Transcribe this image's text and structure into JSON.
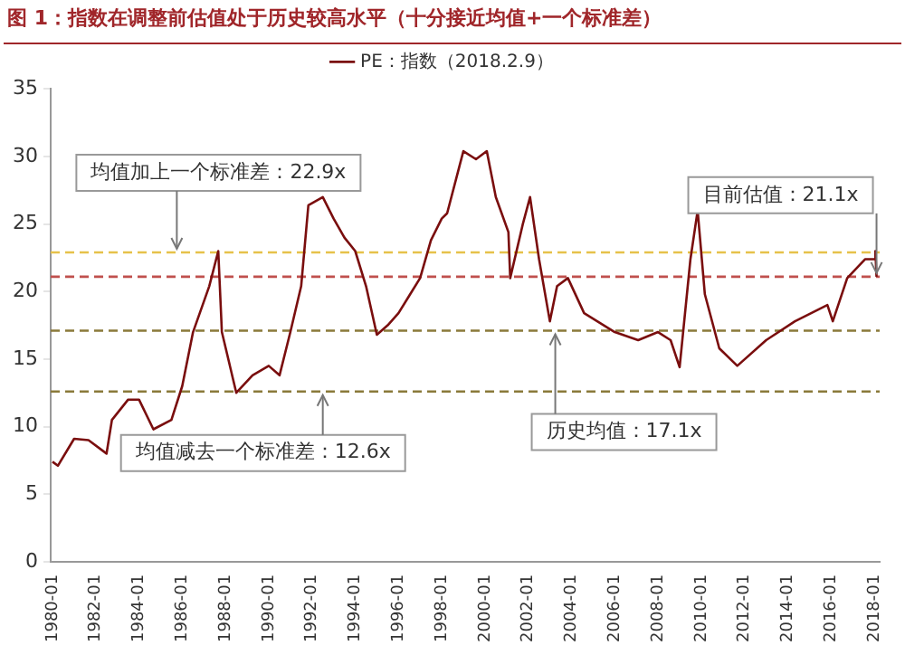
{
  "chart_data": {
    "type": "line",
    "title": "图 1：指数在调整前估值处于历史较高水平（十分接近均值+一个标准差）",
    "xlim": [
      "1979-12",
      "2018-04"
    ],
    "xticks": [
      "1980-01",
      "1982-01",
      "1984-01",
      "1986-01",
      "1988-01",
      "1990-01",
      "1992-01",
      "1994-01",
      "1996-01",
      "1998-01",
      "2000-01",
      "2002-01",
      "2004-01",
      "2006-01",
      "2008-01",
      "2010-01",
      "2012-01",
      "2014-01",
      "2016-01",
      "2018-01"
    ],
    "ylim": [
      0,
      35
    ],
    "yticks": [
      0,
      5,
      10,
      15,
      20,
      25,
      30,
      35
    ],
    "grid": false,
    "legend": "top right",
    "marker": "none",
    "line_style": "solid",
    "series": [
      {
        "name": "PE：指数（2018.2.9）",
        "color": "#7a0e0e",
        "x": [
          "1980-01",
          "1980-04",
          "1981-01",
          "1981-09",
          "1982-07",
          "1982-10",
          "1983-07",
          "1984-01",
          "1984-09",
          "1985-07",
          "1986-01",
          "1986-07",
          "1987-04",
          "1987-09",
          "1987-11",
          "1988-07",
          "1989-04",
          "1990-01",
          "1990-07",
          "1991-01",
          "1991-07",
          "1991-11",
          "1992-07",
          "1993-01",
          "1993-07",
          "1994-01",
          "1994-07",
          "1995-01",
          "1995-07",
          "1996-01",
          "1996-07",
          "1997-01",
          "1997-07",
          "1998-01",
          "1998-04",
          "1999-01",
          "1999-08",
          "2000-02",
          "2000-07",
          "2001-02",
          "2001-03",
          "2001-10",
          "2002-02",
          "2002-07",
          "2003-01",
          "2003-05",
          "2003-11",
          "2004-08",
          "2006-01",
          "2007-02",
          "2008-01",
          "2008-08",
          "2009-01",
          "2009-07",
          "2009-11",
          "2010-03",
          "2010-11",
          "2011-09",
          "2013-01",
          "2014-05",
          "2015-11",
          "2016-02",
          "2016-10",
          "2017-08",
          "2018-01",
          "2018-01-20",
          "2018-02-09"
        ],
        "values": [
          7.4,
          7.1,
          9.1,
          9.0,
          8.0,
          10.5,
          12.0,
          12.0,
          9.8,
          10.5,
          13.0,
          17.0,
          20.4,
          23.0,
          17.0,
          12.5,
          13.8,
          14.5,
          13.8,
          17.0,
          20.4,
          26.4,
          27.0,
          25.4,
          24.0,
          23.0,
          20.4,
          16.8,
          17.5,
          18.4,
          19.7,
          21.0,
          23.8,
          25.4,
          25.8,
          30.4,
          29.8,
          30.4,
          27.0,
          24.4,
          21.0,
          25.0,
          27.0,
          22.4,
          17.8,
          20.4,
          21.0,
          18.4,
          17.0,
          16.4,
          17.0,
          16.4,
          14.4,
          22.4,
          26.0,
          19.8,
          15.8,
          14.5,
          16.4,
          17.8,
          19.0,
          17.8,
          21.0,
          22.4,
          22.4,
          23.0,
          21.1
        ]
      }
    ],
    "ref_lines": [
      {
        "axis": "y",
        "value": 22.9,
        "color": "#e6c24a",
        "line_style": "dashed"
      },
      {
        "axis": "y",
        "value": 21.1,
        "color": "#c0504d",
        "line_style": "dashed"
      },
      {
        "axis": "y",
        "value": 17.1,
        "color": "#8a7a3a",
        "line_style": "dashed"
      },
      {
        "axis": "y",
        "value": 12.6,
        "color": "#8a7a3a",
        "line_style": "dashed"
      }
    ],
    "annotations": [
      {
        "text": "均值加上一个标准差：22.9x",
        "x": "1985-10",
        "y": 22.9
      },
      {
        "text": "目前估值：21.1x",
        "x": "2018-02-09",
        "y": 21.1
      },
      {
        "text": "均值减去一个标准差：12.6x",
        "x": "1992-07",
        "y": 12.6
      },
      {
        "text": "历史均值：17.1x",
        "x": "2003-04",
        "y": 17.1
      }
    ]
  }
}
